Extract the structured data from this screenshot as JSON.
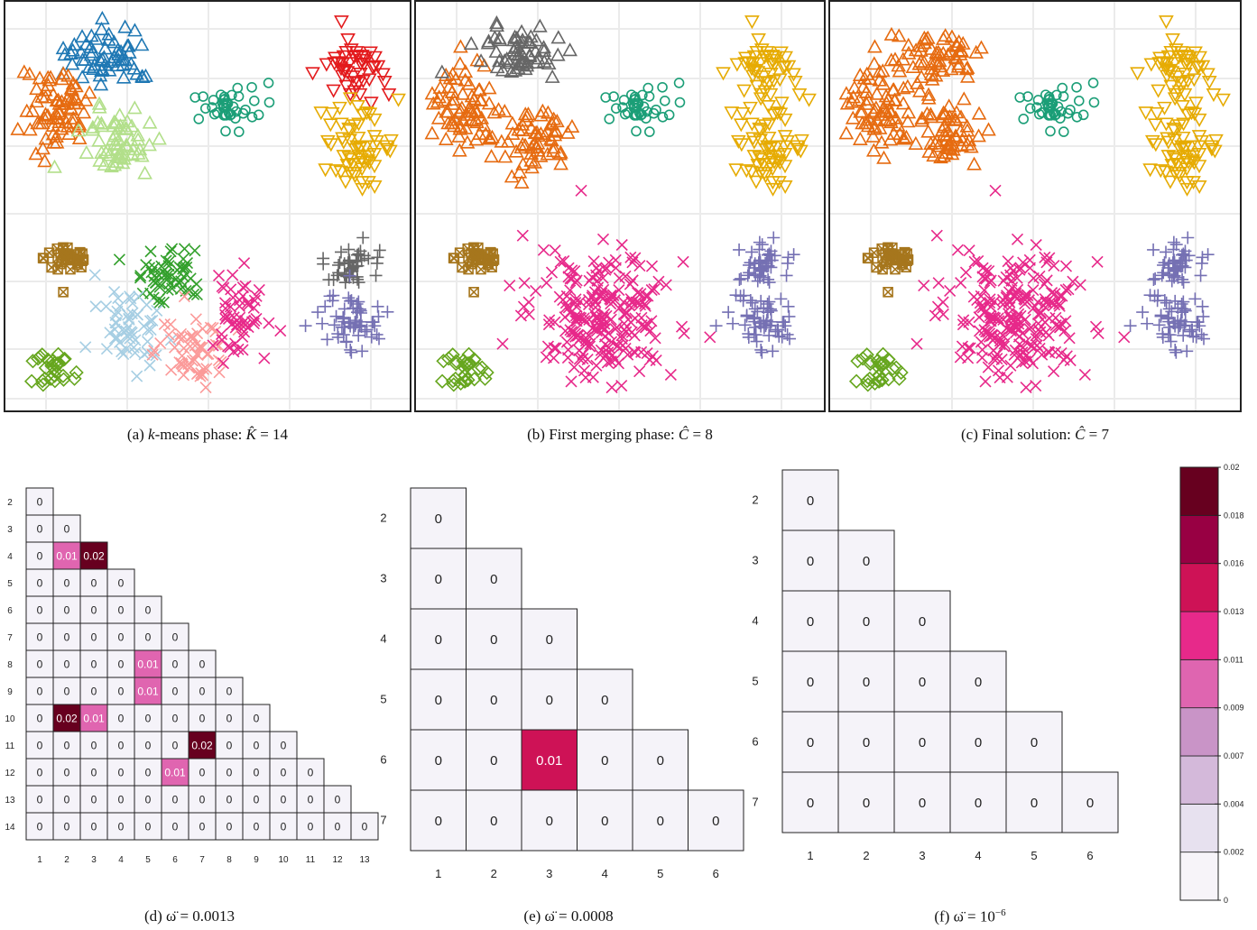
{
  "scatter_panels": [
    {
      "id": "a",
      "caption_prefix": "(a) ",
      "caption_math_var": "k",
      "caption_text": "-means phase: ",
      "caption_symbol": "K̂",
      "caption_eq": " = 14",
      "clusters": [
        {
          "color": "#1f78b4",
          "marker": "triangle-up"
        },
        {
          "color": "#e66b10",
          "marker": "triangle-up"
        },
        {
          "color": "#b2df8a",
          "marker": "triangle-up"
        },
        {
          "color": "#1b9e77",
          "marker": "circle"
        },
        {
          "color": "#e31a1c",
          "marker": "triangle-down"
        },
        {
          "color": "#e6ab02",
          "marker": "triangle-down"
        },
        {
          "color": "#a6761d",
          "marker": "square-x"
        },
        {
          "color": "#33a02c",
          "marker": "x"
        },
        {
          "color": "#a6cee3",
          "marker": "x"
        },
        {
          "color": "#fb9a99",
          "marker": "x"
        },
        {
          "color": "#e7298a",
          "marker": "x"
        },
        {
          "color": "#666666",
          "marker": "plus"
        },
        {
          "color": "#7570b3",
          "marker": "plus"
        },
        {
          "color": "#66a61e",
          "marker": "diamond"
        }
      ]
    },
    {
      "id": "b",
      "caption_prefix": "(b) ",
      "caption_text": "First merging phase: ",
      "caption_symbol": "Ĉ",
      "caption_eq": " = 8"
    },
    {
      "id": "c",
      "caption_prefix": "(c) ",
      "caption_text": "Final solution: ",
      "caption_symbol": "Ĉ",
      "caption_eq": " = 7"
    }
  ],
  "chart_data": [
    {
      "type": "heatmap",
      "id": "d",
      "caption": "(d) ω̈ = 0.0013",
      "row_labels": [
        "2",
        "3",
        "4",
        "5",
        "6",
        "7",
        "8",
        "9",
        "10",
        "11",
        "12",
        "13",
        "14"
      ],
      "col_labels": [
        "1",
        "2",
        "3",
        "4",
        "5",
        "6",
        "7",
        "8",
        "9",
        "10",
        "11",
        "12",
        "13"
      ],
      "highlights": [
        {
          "r": "4",
          "c": "2",
          "v": "0.01"
        },
        {
          "r": "4",
          "c": "3",
          "v": "0.02"
        },
        {
          "r": "8",
          "c": "5",
          "v": "0.01"
        },
        {
          "r": "9",
          "c": "5",
          "v": "0.01"
        },
        {
          "r": "10",
          "c": "2",
          "v": "0.02"
        },
        {
          "r": "10",
          "c": "3",
          "v": "0.01"
        },
        {
          "r": "11",
          "c": "7",
          "v": "0.02"
        },
        {
          "r": "12",
          "c": "6",
          "v": "0.01"
        }
      ],
      "default_value": "0"
    },
    {
      "type": "heatmap",
      "id": "e",
      "caption": "(e) ω̈ = 0.0008",
      "row_labels": [
        "2",
        "3",
        "4",
        "5",
        "6",
        "7"
      ],
      "col_labels": [
        "1",
        "2",
        "3",
        "4",
        "5",
        "6"
      ],
      "highlights": [
        {
          "r": "6",
          "c": "3",
          "v": "0.01"
        }
      ],
      "default_value": "0"
    },
    {
      "type": "heatmap",
      "id": "f",
      "caption_prefix": "(f) ω̈ = 10",
      "caption_sup": "−6",
      "row_labels": [
        "2",
        "3",
        "4",
        "5",
        "6",
        "7"
      ],
      "col_labels": [
        "1",
        "2",
        "3",
        "4",
        "5",
        "6"
      ],
      "highlights": [],
      "default_value": "0"
    }
  ],
  "colorbar": {
    "colors": [
      "#f7f4f9",
      "#e7e1ef",
      "#d4b9da",
      "#c994c7",
      "#df65b0",
      "#e7298a",
      "#ce1256",
      "#980043",
      "#67001f"
    ],
    "tick_labels": [
      "0",
      "0.002",
      "0.004",
      "0.007",
      "0.009",
      "0.011",
      "0.013",
      "0.016",
      "0.018",
      "0.02"
    ]
  },
  "heat_colors": {
    "0": "#f5f3f9",
    "0.01": "#e065b0",
    "0.02": "#67001f",
    "0.01_e": "#ce1256"
  }
}
